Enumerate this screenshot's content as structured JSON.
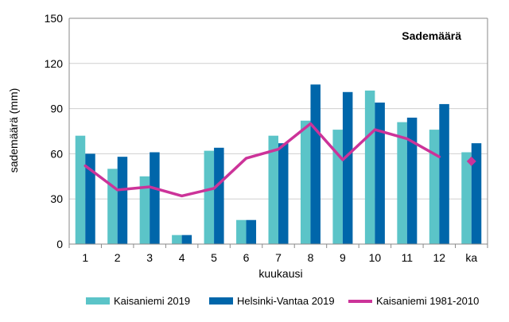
{
  "chart_data": {
    "type": "bar",
    "title": "Sademäärä",
    "xlabel": "kuukausi",
    "ylabel": "sademäärä (mm)",
    "ylim": [
      0,
      150
    ],
    "yticks": [
      0,
      30,
      60,
      90,
      120,
      150
    ],
    "categories": [
      "1",
      "2",
      "3",
      "4",
      "5",
      "6",
      "7",
      "8",
      "9",
      "10",
      "11",
      "12",
      "ka"
    ],
    "series": [
      {
        "name": "Kaisaniemi 2019",
        "kind": "bar",
        "color": "#5bc4c8",
        "values": [
          72,
          50,
          45,
          6,
          62,
          16,
          72,
          82,
          76,
          102,
          81,
          76,
          61
        ]
      },
      {
        "name": "Helsinki-Vantaa 2019",
        "kind": "bar",
        "color": "#0066aa",
        "values": [
          60,
          58,
          61,
          6,
          64,
          16,
          67,
          106,
          101,
          94,
          84,
          93,
          67
        ]
      },
      {
        "name": "Kaisaniemi 1981-2010",
        "kind": "line",
        "color": "#cc3399",
        "values": [
          52,
          36,
          38,
          32,
          37,
          57,
          63,
          80,
          56,
          76,
          70,
          58,
          55
        ],
        "marker_only": [
          "ka"
        ]
      }
    ],
    "grid": "horizontal",
    "legend_position": "bottom"
  }
}
